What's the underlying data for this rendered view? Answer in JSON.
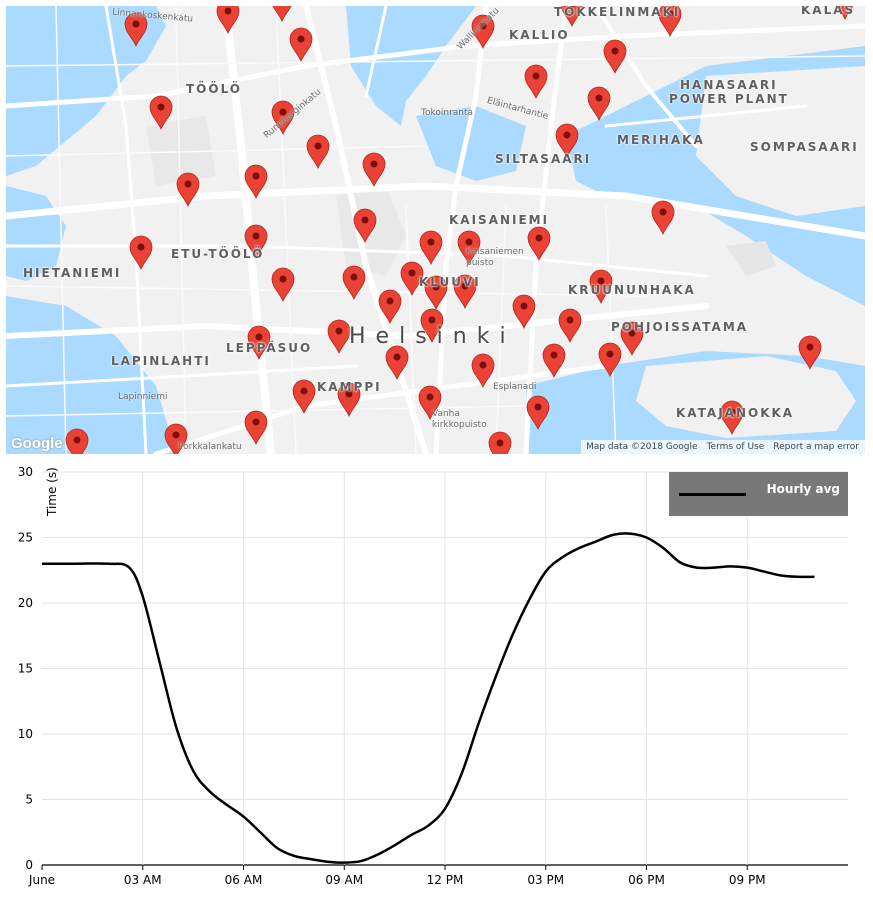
{
  "map": {
    "city_label": "Helsinki",
    "districts": [
      {
        "id": "toolo",
        "label": "TÖÖLÖ"
      },
      {
        "id": "kallio",
        "label": "KALLIO"
      },
      {
        "id": "toukkelinmaki",
        "label": "TOKKELINMÄKI"
      },
      {
        "id": "kalasatama",
        "label": "KALAS"
      },
      {
        "id": "hanasaari",
        "label": "HANASAARI"
      },
      {
        "id": "power-plant",
        "label": "POWER PLANT"
      },
      {
        "id": "merihaka",
        "label": "MERIHAKA"
      },
      {
        "id": "siltasaari",
        "label": "SILTASAARI"
      },
      {
        "id": "sompasaari",
        "label": "SOMPASAARI"
      },
      {
        "id": "kaisaniemi",
        "label": "KAISANIEMI"
      },
      {
        "id": "etu-toolo",
        "label": "ETU-TÖÖLÖ"
      },
      {
        "id": "hietaniemi",
        "label": "HIETANIEMI"
      },
      {
        "id": "kluuvi",
        "label": "KLUUVI"
      },
      {
        "id": "kruununhaka",
        "label": "KRUUNUNHAKA"
      },
      {
        "id": "pohjoissatama",
        "label": "POHJOISSATAMA"
      },
      {
        "id": "lapinlahti",
        "label": "LAPINLAHTI"
      },
      {
        "id": "lapinlahti-2",
        "label": "LEPPÄSUO"
      },
      {
        "id": "kamppi",
        "label": "KAMPPI"
      },
      {
        "id": "katajanokka",
        "label": "KATAJANOKKA"
      }
    ],
    "streets": [
      {
        "id": "linnankoskenkatu",
        "label": "Linnankoskenkatu"
      },
      {
        "id": "tokoinranta",
        "label": "Tokoinranta"
      },
      {
        "id": "elaintarhantie",
        "label": "Eläintarhantie"
      },
      {
        "id": "runeberginkatu",
        "label": "Runeberginkatu"
      },
      {
        "id": "wallininkatu",
        "label": "Wallininkatu"
      },
      {
        "id": "kaisaniemen-puisto",
        "label": "Kaisaniemen puisto"
      },
      {
        "id": "esplanadi",
        "label": "Esplanadi"
      },
      {
        "id": "lapinniemi",
        "label": "Lapinniemi"
      },
      {
        "id": "kirkkopuisto",
        "label": "Vanha kirkkopuisto"
      },
      {
        "id": "porkkalankatu",
        "label": "Porkkalankatu"
      }
    ],
    "google_logo": "Google",
    "attribution": {
      "data": "Map data ©2018 Google",
      "terms": "Terms of Use",
      "report": "Report a map error"
    },
    "marker_color": "#ea4335",
    "water_color": "#aadaff"
  },
  "chart_data": {
    "type": "line",
    "ylabel": "Time (s)",
    "ylim": [
      0,
      30
    ],
    "yticks": [
      "0",
      "5",
      "10",
      "15",
      "20",
      "25",
      "30"
    ],
    "x_tick_labels": [
      "June",
      "03 AM",
      "06 AM",
      "09 AM",
      "12 PM",
      "03 PM",
      "06 PM",
      "09 PM"
    ],
    "grid": true,
    "legend_position": "top-right",
    "series": [
      {
        "name": "Hourly avg",
        "color": "#000000",
        "x_hours": [
          0,
          1,
          2,
          2.6,
          3,
          3.5,
          4,
          4.5,
          5,
          5.5,
          6,
          6.5,
          7,
          7.5,
          8,
          8.5,
          9,
          9.5,
          10,
          10.5,
          11,
          11.5,
          12,
          12.5,
          13,
          13.5,
          14,
          14.5,
          15,
          15.5,
          16,
          16.5,
          17,
          17.5,
          18,
          18.5,
          19,
          19.5,
          20,
          20.5,
          21,
          21.5,
          22,
          22.5,
          23
        ],
        "values": [
          23,
          23,
          23,
          22.7,
          20.5,
          15.5,
          10.5,
          7.2,
          5.6,
          4.6,
          3.7,
          2.5,
          1.3,
          0.7,
          0.45,
          0.25,
          0.18,
          0.3,
          0.8,
          1.5,
          2.3,
          3.0,
          4.3,
          7.0,
          10.8,
          14.3,
          17.5,
          20.2,
          22.4,
          23.5,
          24.2,
          24.7,
          25.2,
          25.3,
          25,
          24.2,
          23.1,
          22.7,
          22.7,
          22.8,
          22.7,
          22.4,
          22.1,
          22,
          22
        ]
      }
    ]
  }
}
